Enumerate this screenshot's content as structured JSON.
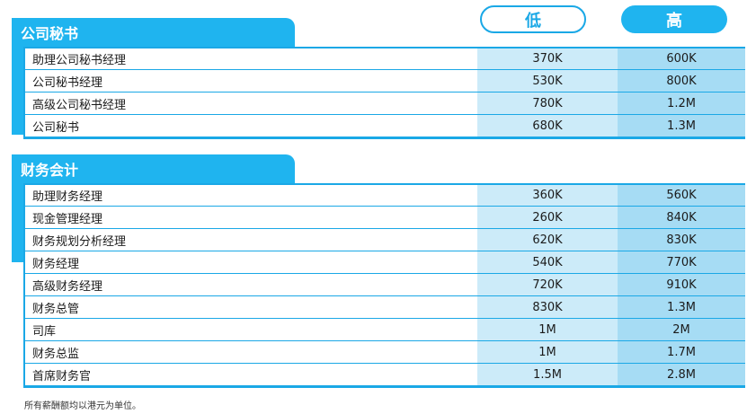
{
  "columns": {
    "low": "低",
    "high": "高"
  },
  "sections": [
    {
      "title": "公司秘书",
      "rows": [
        {
          "role": "助理公司秘书经理",
          "low": "370K",
          "high": "600K"
        },
        {
          "role": "公司秘书经理",
          "low": "530K",
          "high": "800K"
        },
        {
          "role": "高级公司秘书经理",
          "low": "780K",
          "high": "1.2M"
        },
        {
          "role": "公司秘书",
          "low": "680K",
          "high": "1.3M"
        }
      ]
    },
    {
      "title": "财务会计",
      "rows": [
        {
          "role": "助理财务经理",
          "low": "360K",
          "high": "560K"
        },
        {
          "role": "现金管理经理",
          "low": "260K",
          "high": "840K"
        },
        {
          "role": "财务规划分析经理",
          "low": "620K",
          "high": "830K"
        },
        {
          "role": "财务经理",
          "low": "540K",
          "high": "770K"
        },
        {
          "role": "高级财务经理",
          "low": "720K",
          "high": "910K"
        },
        {
          "role": "财务总管",
          "low": "830K",
          "high": "1.3M"
        },
        {
          "role": "司库",
          "low": "1M",
          "high": "2M"
        },
        {
          "role": "财务总监",
          "low": "1M",
          "high": "1.7M"
        },
        {
          "role": "首席财务官",
          "low": "1.5M",
          "high": "2.8M"
        }
      ]
    }
  ],
  "footnote": "所有薪酬额均以港元为单位。",
  "colors": {
    "accent": "#1fb4ef",
    "low_fill": "#ccebf9",
    "high_fill": "#a6dcf4"
  }
}
